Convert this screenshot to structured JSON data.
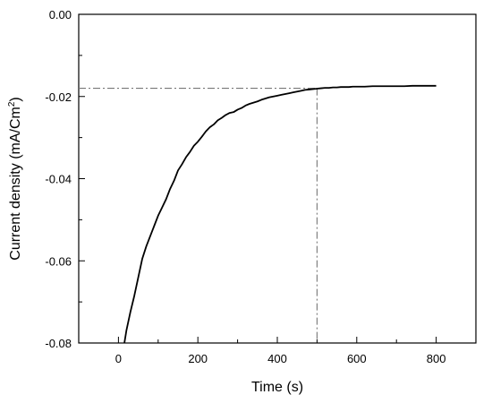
{
  "chart_data": {
    "type": "line",
    "xlabel": "Time (s)",
    "ylabel_main": "Current density (mA/Cm",
    "ylabel_sup": "2",
    "ylabel_tail": ")",
    "xlim": [
      -100,
      900
    ],
    "ylim": [
      -0.08,
      0.0
    ],
    "x_ticks": [
      0,
      200,
      400,
      600,
      800
    ],
    "x_tick_labels": [
      "0",
      "200",
      "400",
      "600",
      "800"
    ],
    "y_ticks": [
      -0.08,
      -0.06,
      -0.04,
      -0.02,
      0.0
    ],
    "y_tick_labels": [
      "-0.08",
      "-0.06",
      "-0.04",
      "-0.02",
      "0.00"
    ],
    "grid": false,
    "reference_lines": {
      "x": 500,
      "y": -0.018,
      "style": "dash-dot",
      "color": "#777777"
    },
    "series": [
      {
        "color": "#000000",
        "x": [
          15,
          20,
          30,
          40,
          50,
          60,
          70,
          80,
          90,
          100,
          110,
          120,
          130,
          140,
          150,
          160,
          170,
          180,
          190,
          200,
          210,
          220,
          230,
          240,
          250,
          260,
          270,
          280,
          290,
          300,
          310,
          320,
          330,
          340,
          350,
          360,
          370,
          380,
          390,
          400,
          410,
          420,
          430,
          440,
          450,
          460,
          470,
          480,
          490,
          500,
          510,
          520,
          530,
          540,
          550,
          560,
          570,
          580,
          590,
          600,
          620,
          640,
          660,
          680,
          700,
          720,
          740,
          760,
          780,
          800
        ],
        "y": [
          -0.08,
          -0.077,
          -0.0725,
          -0.0685,
          -0.064,
          -0.0595,
          -0.0565,
          -0.054,
          -0.0515,
          -0.049,
          -0.047,
          -0.045,
          -0.0425,
          -0.0405,
          -0.038,
          -0.0365,
          -0.0348,
          -0.0335,
          -0.032,
          -0.031,
          -0.0298,
          -0.0285,
          -0.0275,
          -0.0268,
          -0.0258,
          -0.0252,
          -0.0245,
          -0.024,
          -0.0238,
          -0.0232,
          -0.0228,
          -0.0222,
          -0.0218,
          -0.0215,
          -0.0212,
          -0.0208,
          -0.0205,
          -0.0202,
          -0.02,
          -0.0198,
          -0.0196,
          -0.0194,
          -0.0192,
          -0.019,
          -0.0188,
          -0.0186,
          -0.0184,
          -0.0183,
          -0.0182,
          -0.0181,
          -0.018,
          -0.0179,
          -0.0179,
          -0.0178,
          -0.0178,
          -0.0177,
          -0.0177,
          -0.0177,
          -0.0176,
          -0.0176,
          -0.0176,
          -0.0175,
          -0.0175,
          -0.0175,
          -0.0175,
          -0.0175,
          -0.0174,
          -0.0174,
          -0.0174,
          -0.0174
        ]
      }
    ]
  },
  "colors": {
    "axis": "#000000",
    "series": "#000000",
    "reference": "#777777",
    "background": "#ffffff"
  }
}
